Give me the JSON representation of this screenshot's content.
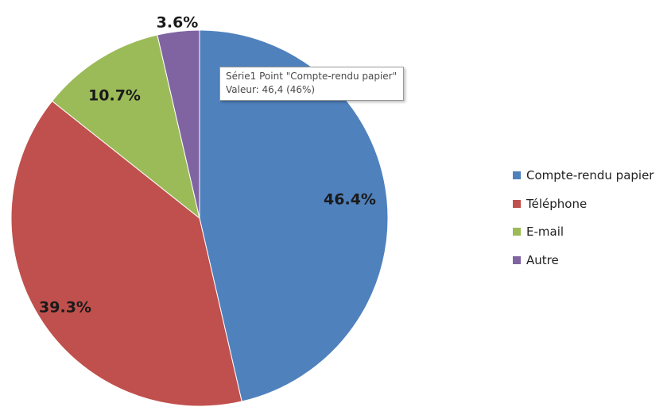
{
  "chart_data": {
    "type": "pie",
    "series": [
      {
        "name": "Série1",
        "categories": [
          "Compte-rendu papier",
          "Téléphone",
          "E-mail",
          "Autre"
        ],
        "values": [
          46.4,
          39.3,
          10.7,
          3.6
        ],
        "data_labels": [
          "46.4%",
          "39.3%",
          "10.7%",
          "3.6%"
        ],
        "colors": [
          "#4F81BD",
          "#C0504D",
          "#9BBB59",
          "#8064A2"
        ]
      }
    ],
    "start_angle_deg": 0,
    "direction": "clockwise",
    "legend_position": "right"
  },
  "tooltip": {
    "line1": "Série1 Point \"Compte-rendu papier\"",
    "line2": "Valeur: 46,4 (46%)"
  }
}
